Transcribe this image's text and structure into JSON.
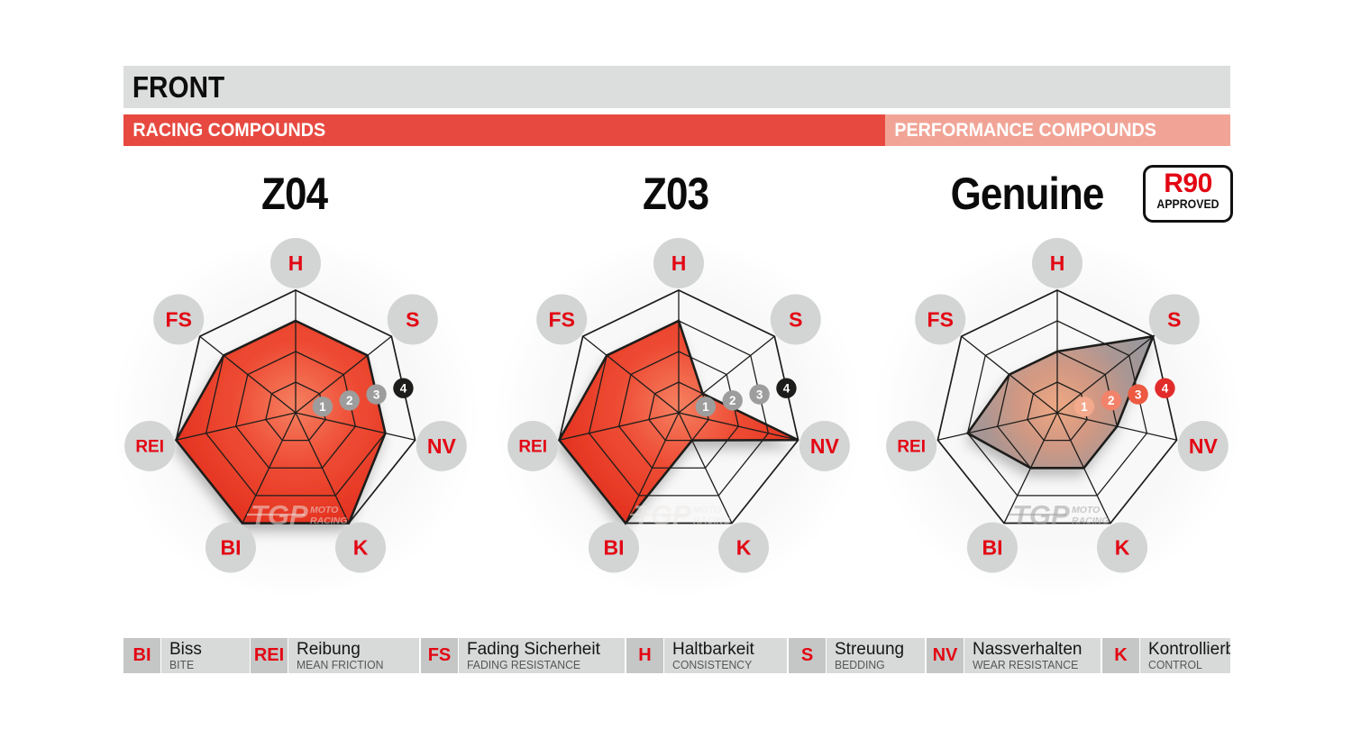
{
  "header": {
    "title": "FRONT"
  },
  "bars": {
    "racing": "RACING COMPOUNDS",
    "performance": "PERFORMANCE COMPOUNDS"
  },
  "approval_badge": {
    "line1": "R90",
    "line2": "APPROVED"
  },
  "watermark": {
    "logo": "TGP",
    "sub_top": "MOTO",
    "sub_bottom": "RACING"
  },
  "scale_markers": [
    "1",
    "2",
    "3",
    "4"
  ],
  "chart_data": [
    {
      "type": "radar",
      "title": "Z04",
      "group": "RACING COMPOUNDS",
      "axes": [
        "H",
        "S",
        "NV",
        "K",
        "BI",
        "REI",
        "FS"
      ],
      "values": [
        3,
        3,
        3,
        4,
        4,
        4,
        3
      ],
      "range": [
        0,
        4
      ],
      "rings": 4,
      "theme": "racing"
    },
    {
      "type": "radar",
      "title": "Z03",
      "group": "RACING COMPOUNDS",
      "axes": [
        "H",
        "S",
        "NV",
        "K",
        "BI",
        "REI",
        "FS"
      ],
      "values": [
        3,
        1,
        4,
        1,
        4,
        4,
        3
      ],
      "range": [
        0,
        4
      ],
      "rings": 4,
      "theme": "racing"
    },
    {
      "type": "radar",
      "title": "Genuine",
      "group": "PERFORMANCE COMPOUNDS",
      "approval": "R90 APPROVED",
      "axes": [
        "H",
        "S",
        "NV",
        "K",
        "BI",
        "REI",
        "FS"
      ],
      "values": [
        2,
        4,
        2,
        2,
        2,
        3,
        2
      ],
      "range": [
        0,
        4
      ],
      "rings": 4,
      "theme": "performance"
    }
  ],
  "legend": {
    "items": [
      {
        "abbr": "BI",
        "term": "Biss",
        "translation": "BITE"
      },
      {
        "abbr": "REI",
        "term": "Reibung",
        "translation": "MEAN FRICTION"
      },
      {
        "abbr": "FS",
        "term": "Fading Sicherheit",
        "translation": "FADING RESISTANCE"
      },
      {
        "abbr": "H",
        "term": "Haltbarkeit",
        "translation": "CONSISTENCY"
      },
      {
        "abbr": "S",
        "term": "Streuung",
        "translation": "BEDDING"
      },
      {
        "abbr": "NV",
        "term": "Nassverhalten",
        "translation": "WEAR RESISTANCE"
      },
      {
        "abbr": "K",
        "term": "Kontrollierbarkeit",
        "translation": "CONTROL"
      }
    ]
  },
  "colors": {
    "brand_red": "#e30613",
    "racing_bar": "#e74940",
    "performance_bar": "#f1a496",
    "header_gray": "#dcdddd",
    "axis_badge_gray": "#d3d4d4",
    "grid_line": "#1d1d1b",
    "racing_markers": [
      "#9d9d9d",
      "#9d9d9d",
      "#9d9d9d",
      "#1d1d1b"
    ],
    "genuine_markers": [
      "#f4a98c",
      "#f2836a",
      "#ec5a41",
      "#e22b2b"
    ],
    "racing_fill": {
      "center": "#f58061",
      "mid": "#ee4c34",
      "edge": "#e22e1d"
    },
    "performance_fill": {
      "center": "#efa57e",
      "mid": "#a8928e",
      "edge": "#8c8d92"
    }
  }
}
